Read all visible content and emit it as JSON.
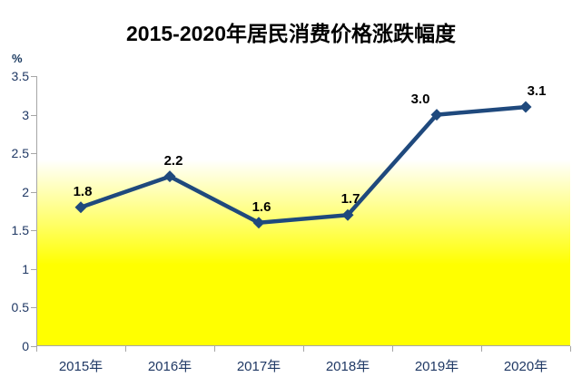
{
  "chart_data": {
    "type": "line",
    "title": "2015-2020年居民消费价格涨跌幅度",
    "ylabel": "%",
    "xlabel": "",
    "categories": [
      "2015年",
      "2016年",
      "2017年",
      "2018年",
      "2019年",
      "2020年"
    ],
    "values": [
      1.8,
      2.2,
      1.6,
      1.7,
      3.0,
      3.1
    ],
    "value_labels": [
      "1.8",
      "2.2",
      "1.6",
      "1.7",
      "3.0",
      "3.1"
    ],
    "yticks": [
      0,
      0.5,
      1,
      1.5,
      2,
      2.5,
      3,
      3.5
    ],
    "ytick_labels": [
      "0",
      "0.5",
      "1",
      "1.5",
      "2",
      "2.5",
      "3",
      "3.5"
    ],
    "ylim": [
      0,
      3.5
    ],
    "grid": false,
    "legend_position": "none",
    "marker": "diamond",
    "label_dx": [
      2,
      4,
      3,
      3,
      -18,
      12
    ],
    "colors": {
      "line": "#1F497D",
      "marker": "#1F497D",
      "data_label": "#000000",
      "axis_text": "#1F3864",
      "axis_line": "#A6A6A6",
      "plot_bg_top": "#FFFFFF",
      "plot_bg_bottom": "#FFFF00",
      "title": "#000000"
    }
  }
}
